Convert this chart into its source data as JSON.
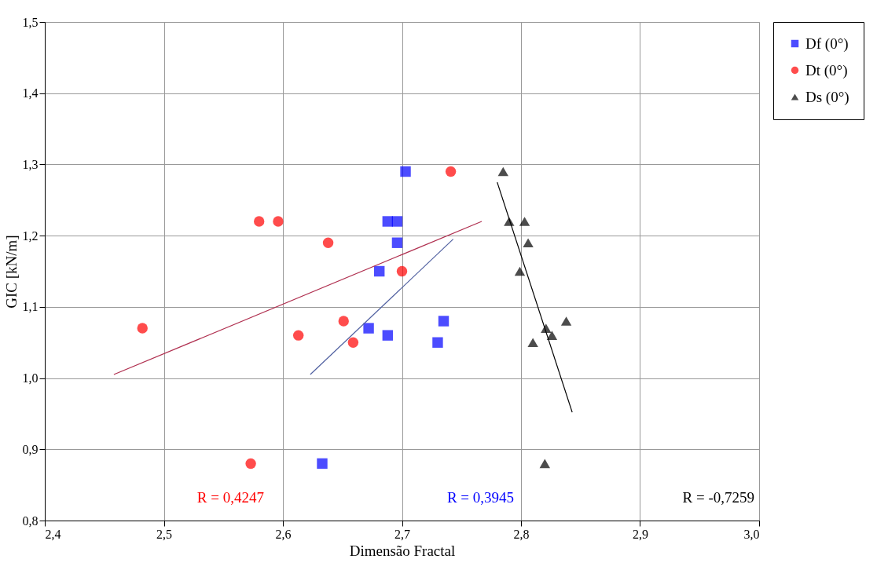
{
  "chart_data": {
    "type": "scatter",
    "xlabel": "Dimensão Fractal",
    "ylabel": "GIC [kN/m]",
    "xlim": [
      2.4,
      3.0
    ],
    "ylim": [
      0.8,
      1.5
    ],
    "xticks": [
      {
        "value": 2.4,
        "label": "2,4"
      },
      {
        "value": 2.5,
        "label": "2,5"
      },
      {
        "value": 2.6,
        "label": "2,6"
      },
      {
        "value": 2.7,
        "label": "2,7"
      },
      {
        "value": 2.8,
        "label": "2,8"
      },
      {
        "value": 2.9,
        "label": "2,9"
      },
      {
        "value": 3.0,
        "label": "3,0"
      }
    ],
    "yticks": [
      {
        "value": 0.8,
        "label": "0,8"
      },
      {
        "value": 0.9,
        "label": "0,9"
      },
      {
        "value": 1.0,
        "label": "1,0"
      },
      {
        "value": 1.1,
        "label": "1,1"
      },
      {
        "value": 1.2,
        "label": "1,2"
      },
      {
        "value": 1.3,
        "label": "1,3"
      },
      {
        "value": 1.4,
        "label": "1,4"
      },
      {
        "value": 1.5,
        "label": "1,5"
      }
    ],
    "grid": true,
    "legend": "right",
    "series": [
      {
        "name": "Df (0°)",
        "color": "#0000ff",
        "marker": "square",
        "x": [
          2.703,
          2.688,
          2.696,
          2.696,
          2.681,
          2.672,
          2.688,
          2.735,
          2.73,
          2.633
        ],
        "values": [
          1.29,
          1.22,
          1.22,
          1.19,
          1.15,
          1.07,
          1.06,
          1.08,
          1.05,
          0.88
        ]
      },
      {
        "name": "Dt (0°)",
        "color": "#ff0000",
        "marker": "circle",
        "x": [
          2.741,
          2.58,
          2.596,
          2.638,
          2.7,
          2.482,
          2.613,
          2.651,
          2.659,
          2.573
        ],
        "values": [
          1.29,
          1.22,
          1.22,
          1.19,
          1.15,
          1.07,
          1.06,
          1.08,
          1.05,
          0.88
        ]
      },
      {
        "name": "Ds (0°)",
        "color": "#000000",
        "marker": "triangle",
        "x": [
          2.785,
          2.79,
          2.803,
          2.806,
          2.799,
          2.821,
          2.838,
          2.826,
          2.81,
          2.82
        ],
        "values": [
          1.29,
          1.22,
          1.22,
          1.19,
          1.15,
          1.07,
          1.08,
          1.06,
          1.05,
          0.88
        ]
      },
      {
        "type": "line",
        "color": "#b03050",
        "x": [
          2.458,
          2.767
        ],
        "values": [
          1.005,
          1.22
        ]
      },
      {
        "type": "line",
        "color": "#5060a0",
        "x": [
          2.623,
          2.743
        ],
        "values": [
          1.005,
          1.195
        ]
      },
      {
        "type": "line",
        "color": "#000000",
        "x": [
          2.78,
          2.843
        ],
        "values": [
          1.275,
          0.952
        ]
      }
    ],
    "annotations": [
      "R = 0,4247",
      "R = 0,3945",
      "R = -0,7259"
    ]
  }
}
